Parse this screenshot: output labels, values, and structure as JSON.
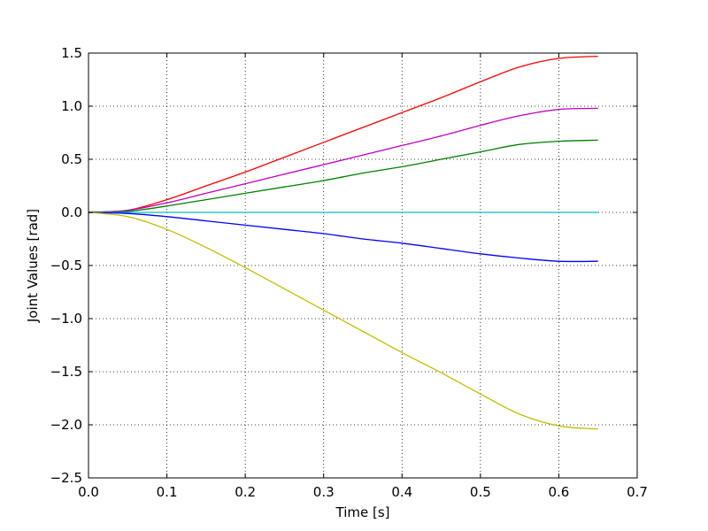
{
  "chart_data": {
    "type": "line",
    "title": "",
    "xlabel": "Time [s]",
    "ylabel": "Joint Values [rad]",
    "xlim": [
      0.0,
      0.7
    ],
    "ylim": [
      -2.5,
      1.5
    ],
    "xticks": [
      "0.0",
      "0.1",
      "0.2",
      "0.3",
      "0.4",
      "0.5",
      "0.6",
      "0.7"
    ],
    "yticks": [
      "1.5",
      "1.0",
      "0.5",
      "0.0",
      "−0.5",
      "−1.0",
      "−1.5",
      "−2.0",
      "−2.5"
    ],
    "grid": true,
    "x": [
      0.0,
      0.05,
      0.1,
      0.15,
      0.2,
      0.25,
      0.3,
      0.35,
      0.4,
      0.45,
      0.5,
      0.55,
      0.6,
      0.65
    ],
    "series": [
      {
        "color": "#ff0000",
        "values": [
          0.0,
          0.02,
          0.12,
          0.25,
          0.38,
          0.52,
          0.66,
          0.8,
          0.94,
          1.08,
          1.23,
          1.37,
          1.45,
          1.47
        ]
      },
      {
        "color": "#bf00bf",
        "values": [
          0.0,
          0.02,
          0.09,
          0.18,
          0.27,
          0.36,
          0.45,
          0.54,
          0.63,
          0.72,
          0.82,
          0.91,
          0.97,
          0.98
        ]
      },
      {
        "color": "#008000",
        "values": [
          0.0,
          0.01,
          0.06,
          0.12,
          0.18,
          0.24,
          0.3,
          0.37,
          0.43,
          0.5,
          0.57,
          0.64,
          0.67,
          0.68
        ]
      },
      {
        "color": "#00bfbf",
        "values": [
          0.0,
          0.0,
          0.0,
          0.0,
          0.0,
          0.0,
          0.0,
          0.0,
          0.0,
          0.0,
          0.0,
          0.0,
          0.0,
          0.0
        ]
      },
      {
        "color": "#0000ff",
        "values": [
          0.0,
          -0.01,
          -0.04,
          -0.08,
          -0.12,
          -0.16,
          -0.2,
          -0.25,
          -0.29,
          -0.34,
          -0.39,
          -0.43,
          -0.46,
          -0.46
        ]
      },
      {
        "color": "#bfbf00",
        "values": [
          0.0,
          -0.04,
          -0.16,
          -0.33,
          -0.52,
          -0.72,
          -0.92,
          -1.12,
          -1.32,
          -1.51,
          -1.71,
          -1.9,
          -2.01,
          -2.04
        ]
      }
    ]
  }
}
